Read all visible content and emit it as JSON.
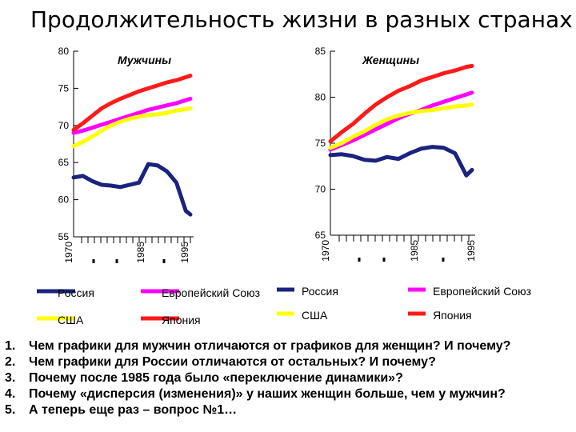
{
  "title": "Продолжительность жизни в разных странах",
  "chart_data": [
    {
      "type": "line",
      "title": "Мужчины",
      "x": [
        1970,
        1972,
        1974,
        1976,
        1978,
        1980,
        1982,
        1984,
        1986,
        1988,
        1990,
        1992,
        1994,
        1995
      ],
      "ylim": [
        55,
        80
      ],
      "yticks": [
        55,
        60,
        65,
        70,
        75,
        80
      ],
      "xticks": [
        "1970",
        "",
        "",
        "1985",
        "",
        "1995"
      ],
      "series": [
        {
          "name": "Россия",
          "color": "#1a237e",
          "values": [
            63,
            63.2,
            62.5,
            62,
            61.9,
            61.7,
            62,
            62.3,
            64.8,
            64.6,
            63.8,
            62.3,
            58.5,
            58
          ]
        },
        {
          "name": "Европейский Союз",
          "color": "#ff00ff",
          "values": [
            69.0,
            69.3,
            69.7,
            70.1,
            70.5,
            70.9,
            71.3,
            71.7,
            72.1,
            72.4,
            72.7,
            73.0,
            73.4,
            73.6
          ]
        },
        {
          "name": "США",
          "color": "#ffff00",
          "values": [
            67.2,
            67.8,
            68.5,
            69.3,
            70,
            70.5,
            70.9,
            71.2,
            71.4,
            71.5,
            71.7,
            72,
            72.2,
            72.3
          ]
        },
        {
          "name": "Япония",
          "color": "#ff1a1a",
          "values": [
            69.4,
            70.3,
            71.3,
            72.3,
            73,
            73.6,
            74.1,
            74.6,
            75,
            75.4,
            75.8,
            76.1,
            76.5,
            76.7
          ]
        }
      ]
    },
    {
      "type": "line",
      "title": "Женщины",
      "x": [
        1970,
        1972,
        1974,
        1976,
        1978,
        1980,
        1982,
        1984,
        1986,
        1988,
        1990,
        1992,
        1994,
        1995
      ],
      "ylim": [
        65,
        85
      ],
      "yticks": [
        65,
        70,
        75,
        80,
        85
      ],
      "xticks": [
        "1970",
        "",
        "",
        "1985",
        "",
        "1995"
      ],
      "series": [
        {
          "name": "Россия",
          "color": "#1a237e",
          "values": [
            73.7,
            73.8,
            73.6,
            73.2,
            73.1,
            73.5,
            73.3,
            73.9,
            74.4,
            74.6,
            74.5,
            73.9,
            71.5,
            72.1
          ]
        },
        {
          "name": "Европейский Союз",
          "color": "#ff00ff",
          "values": [
            74.3,
            74.8,
            75.3,
            75.9,
            76.5,
            77.1,
            77.7,
            78.2,
            78.6,
            79.1,
            79.5,
            79.9,
            80.3,
            80.5
          ]
        },
        {
          "name": "США",
          "color": "#ffff00",
          "values": [
            74.5,
            75,
            75.7,
            76.3,
            77,
            77.6,
            78,
            78.3,
            78.5,
            78.6,
            78.8,
            79,
            79.1,
            79.2
          ]
        },
        {
          "name": "Япония",
          "color": "#ff1a1a",
          "values": [
            75.2,
            76.2,
            77.1,
            78.2,
            79.2,
            80,
            80.7,
            81.2,
            81.8,
            82.2,
            82.6,
            82.9,
            83.3,
            83.4
          ]
        }
      ]
    }
  ],
  "legend_left": {
    "items": [
      {
        "label": "Россия",
        "color": "#1a237e"
      },
      {
        "label": "Европейский Союз",
        "color": "#ff00ff"
      },
      {
        "label": "США",
        "color": "#ffff00"
      },
      {
        "label": "Япония",
        "color": "#ff1a1a"
      }
    ]
  },
  "legend_right": {
    "items": [
      {
        "label": "Россия",
        "color": "#1a237e"
      },
      {
        "label": "Европейский Союз",
        "color": "#ff00ff"
      },
      {
        "label": "США",
        "color": "#ffff00"
      },
      {
        "label": "Япония",
        "color": "#ff1a1a"
      }
    ]
  },
  "questions": [
    {
      "num": "1.",
      "text": "Чем графики для мужчин отличаются от графиков для женщин? И почему?"
    },
    {
      "num": "2.",
      "text": "Чем графики для России отличаются от остальных? И почему?"
    },
    {
      "num": "3.",
      "text": "Почему после 1985 года было «переключение динамики»?"
    },
    {
      "num": "4.",
      "text": "Почему «дисперсия (изменения)» у наших женщин больше, чем у мужчин?"
    },
    {
      "num": "5.",
      "text": "А теперь еще раз – вопрос №1…"
    }
  ]
}
